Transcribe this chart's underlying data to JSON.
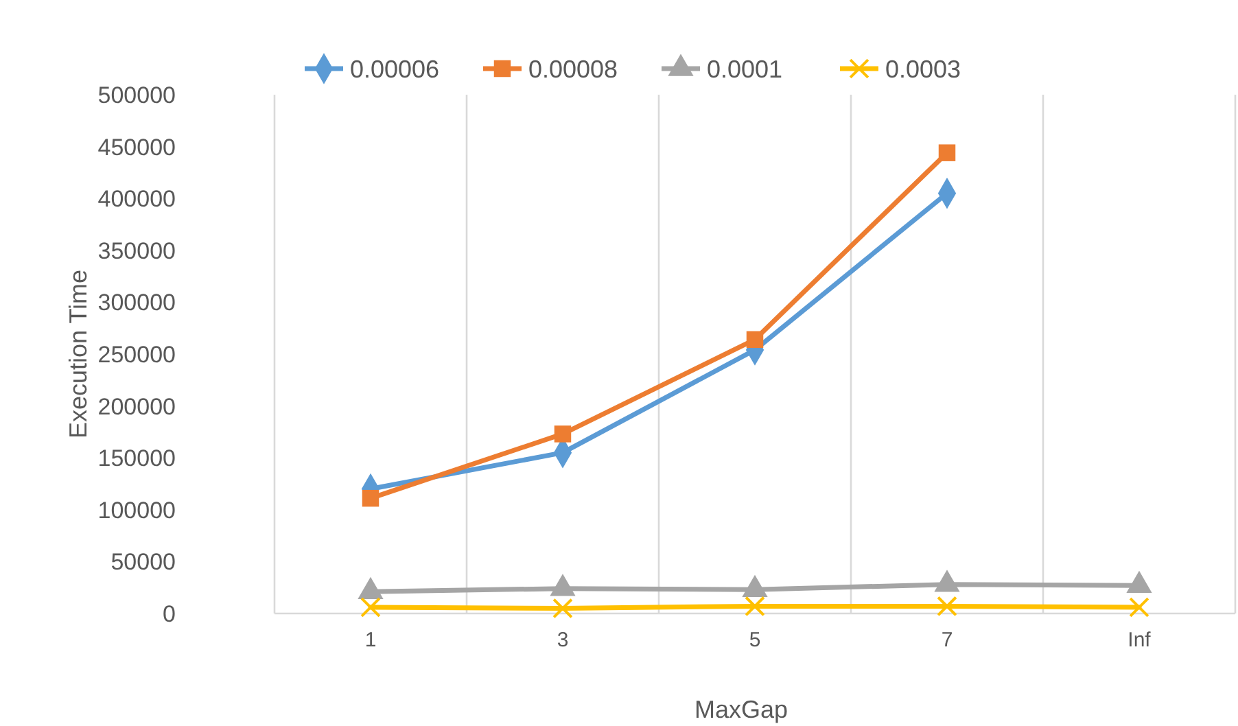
{
  "chart_data": {
    "type": "line",
    "xlabel": "MaxGap",
    "ylabel": "Execution Time",
    "categories": [
      "1",
      "3",
      "5",
      "7",
      "Inf"
    ],
    "series": [
      {
        "name": "0.00006",
        "color": "#5b9bd5",
        "marker": "diamond",
        "values": [
          120000,
          155000,
          254000,
          405000,
          null
        ]
      },
      {
        "name": "0.00008",
        "color": "#ed7d31",
        "marker": "square",
        "values": [
          111000,
          173000,
          264000,
          444000,
          null
        ]
      },
      {
        "name": "0.0001",
        "color": "#a5a5a5",
        "marker": "triangle",
        "values": [
          21000,
          24000,
          23000,
          28000,
          27000
        ]
      },
      {
        "name": "0.0003",
        "color": "#ffc000",
        "marker": "cross",
        "values": [
          6000,
          5000,
          7000,
          7000,
          6000
        ]
      }
    ],
    "ylim": [
      0,
      500000
    ],
    "yticks": [
      0,
      50000,
      100000,
      150000,
      200000,
      250000,
      300000,
      350000,
      400000,
      450000,
      500000
    ],
    "grid": "x",
    "legend": "top"
  }
}
